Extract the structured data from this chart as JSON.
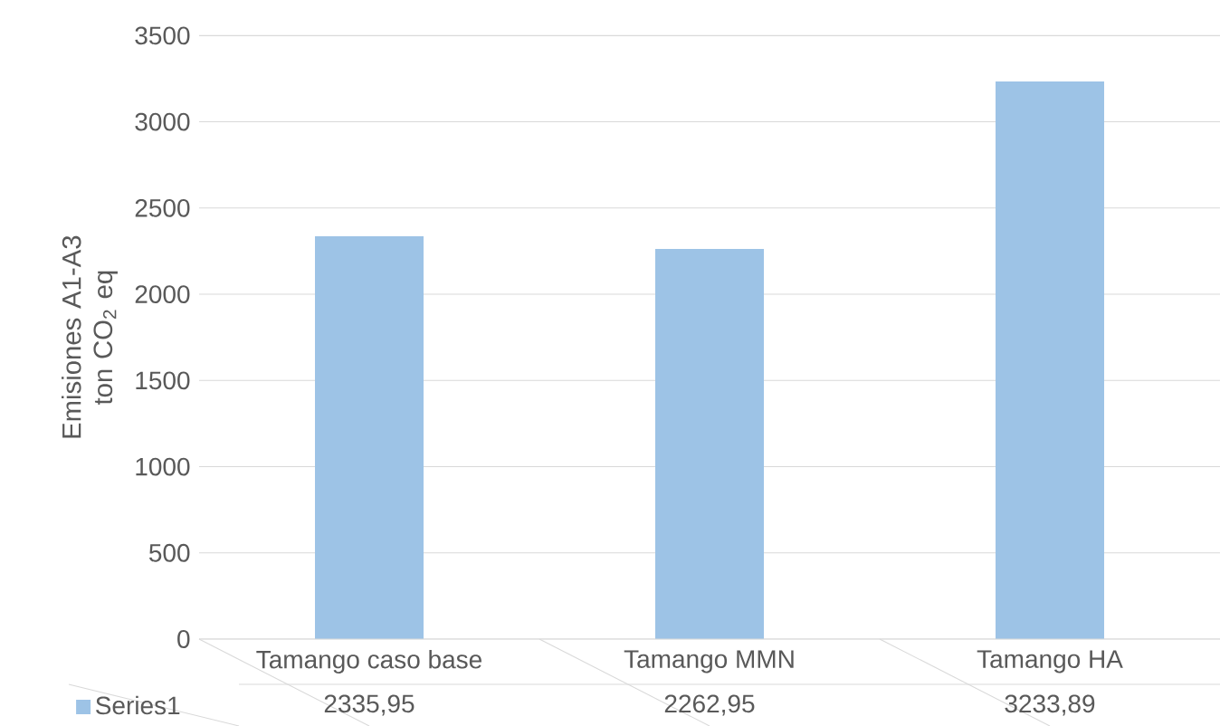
{
  "chart_data": {
    "type": "bar",
    "ylabel": "Emisiones A1-A3 ton CO$_{2}$ eq",
    "categories": [
      "Tamango caso base",
      "Tamango MMN",
      "Tamango HA"
    ],
    "series": [
      {
        "name": "Series1",
        "color": "#9dc3e6",
        "values": [
          2335.95,
          2262.95,
          3233.89
        ],
        "value_labels": [
          "2335,95",
          "2262,95",
          "3233,89"
        ]
      }
    ],
    "ylim": [
      0,
      3500
    ],
    "yticks": [
      0,
      500,
      1000,
      1500,
      2000,
      2500,
      3000,
      3500
    ],
    "grid": "y",
    "legend": "bottom"
  }
}
